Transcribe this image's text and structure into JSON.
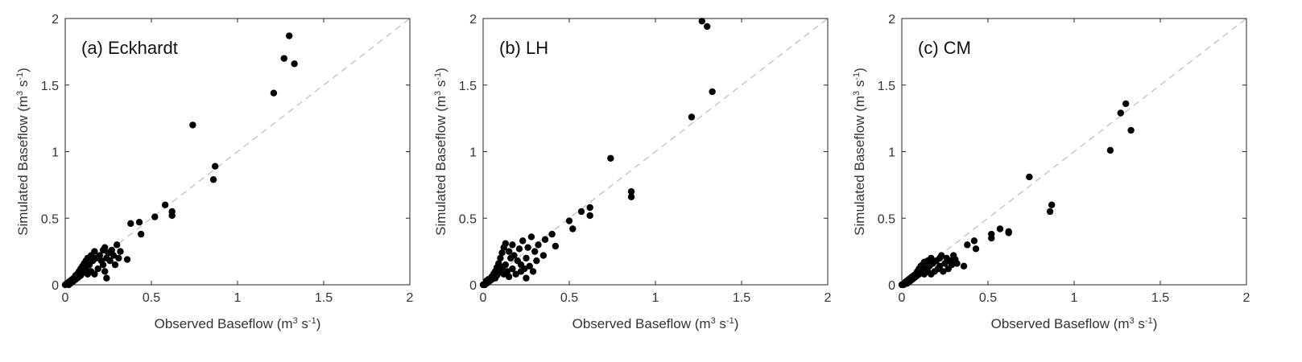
{
  "chart_data": [
    {
      "type": "scatter",
      "panel_label": "(a) Eckhardt",
      "xlabel": "Observed Baseflow (m3 s-1)",
      "ylabel": "Simulated Baseflow (m3 s-1)",
      "xlim": [
        0,
        2
      ],
      "ylim": [
        0,
        2
      ],
      "xticks": [
        "0",
        "0.5",
        "1",
        "1.5",
        "2"
      ],
      "yticks": [
        "0",
        "0.5",
        "1",
        "1.5",
        "2"
      ],
      "reference_line": "1:1 dashed",
      "grid": false,
      "series": [
        {
          "marker_color": "#000000",
          "points": [
            [
              0.0,
              0.0
            ],
            [
              0.01,
              0.01
            ],
            [
              0.02,
              0.0
            ],
            [
              0.02,
              0.02
            ],
            [
              0.03,
              0.01
            ],
            [
              0.03,
              0.03
            ],
            [
              0.04,
              0.02
            ],
            [
              0.04,
              0.04
            ],
            [
              0.05,
              0.03
            ],
            [
              0.05,
              0.05
            ],
            [
              0.06,
              0.04
            ],
            [
              0.06,
              0.07
            ],
            [
              0.07,
              0.05
            ],
            [
              0.07,
              0.08
            ],
            [
              0.08,
              0.06
            ],
            [
              0.08,
              0.1
            ],
            [
              0.09,
              0.07
            ],
            [
              0.09,
              0.12
            ],
            [
              0.1,
              0.09
            ],
            [
              0.1,
              0.14
            ],
            [
              0.11,
              0.1
            ],
            [
              0.11,
              0.16
            ],
            [
              0.12,
              0.12
            ],
            [
              0.12,
              0.18
            ],
            [
              0.13,
              0.08
            ],
            [
              0.13,
              0.2
            ],
            [
              0.14,
              0.15
            ],
            [
              0.15,
              0.22
            ],
            [
              0.15,
              0.1
            ],
            [
              0.16,
              0.18
            ],
            [
              0.17,
              0.25
            ],
            [
              0.17,
              0.08
            ],
            [
              0.18,
              0.2
            ],
            [
              0.19,
              0.12
            ],
            [
              0.2,
              0.22
            ],
            [
              0.21,
              0.18
            ],
            [
              0.22,
              0.26
            ],
            [
              0.22,
              0.15
            ],
            [
              0.23,
              0.28
            ],
            [
              0.23,
              0.1
            ],
            [
              0.24,
              0.2
            ],
            [
              0.24,
              0.05
            ],
            [
              0.25,
              0.24
            ],
            [
              0.26,
              0.18
            ],
            [
              0.27,
              0.26
            ],
            [
              0.28,
              0.22
            ],
            [
              0.29,
              0.15
            ],
            [
              0.3,
              0.3
            ],
            [
              0.31,
              0.2
            ],
            [
              0.32,
              0.25
            ],
            [
              0.36,
              0.19
            ],
            [
              0.38,
              0.46
            ],
            [
              0.43,
              0.47
            ],
            [
              0.44,
              0.38
            ],
            [
              0.52,
              0.51
            ],
            [
              0.58,
              0.6
            ],
            [
              0.62,
              0.55
            ],
            [
              0.62,
              0.52
            ],
            [
              0.74,
              1.2
            ],
            [
              0.87,
              0.89
            ],
            [
              0.86,
              0.79
            ],
            [
              1.21,
              1.44
            ],
            [
              1.27,
              1.7
            ],
            [
              1.3,
              1.87
            ],
            [
              1.33,
              1.66
            ]
          ]
        }
      ]
    },
    {
      "type": "scatter",
      "panel_label": "(b) LH",
      "xlabel": "Observed Baseflow (m3 s-1)",
      "ylabel": "Simulated Baseflow (m3 s-1)",
      "xlim": [
        0,
        2
      ],
      "ylim": [
        0,
        2
      ],
      "xticks": [
        "0",
        "0.5",
        "1",
        "1.5",
        "2"
      ],
      "yticks": [
        "0",
        "0.5",
        "1",
        "1.5",
        "2"
      ],
      "reference_line": "1:1 dashed",
      "grid": false,
      "series": [
        {
          "marker_color": "#000000",
          "points": [
            [
              0.0,
              0.0
            ],
            [
              0.01,
              0.0
            ],
            [
              0.02,
              0.01
            ],
            [
              0.02,
              0.03
            ],
            [
              0.03,
              0.02
            ],
            [
              0.03,
              0.04
            ],
            [
              0.04,
              0.03
            ],
            [
              0.05,
              0.06
            ],
            [
              0.05,
              0.04
            ],
            [
              0.06,
              0.08
            ],
            [
              0.07,
              0.05
            ],
            [
              0.07,
              0.1
            ],
            [
              0.08,
              0.07
            ],
            [
              0.08,
              0.13
            ],
            [
              0.09,
              0.09
            ],
            [
              0.09,
              0.16
            ],
            [
              0.1,
              0.11
            ],
            [
              0.1,
              0.2
            ],
            [
              0.11,
              0.13
            ],
            [
              0.11,
              0.24
            ],
            [
              0.12,
              0.08
            ],
            [
              0.12,
              0.28
            ],
            [
              0.13,
              0.15
            ],
            [
              0.13,
              0.31
            ],
            [
              0.14,
              0.1
            ],
            [
              0.15,
              0.25
            ],
            [
              0.15,
              0.06
            ],
            [
              0.16,
              0.2
            ],
            [
              0.17,
              0.3
            ],
            [
              0.17,
              0.12
            ],
            [
              0.18,
              0.22
            ],
            [
              0.19,
              0.08
            ],
            [
              0.2,
              0.18
            ],
            [
              0.21,
              0.27
            ],
            [
              0.22,
              0.1
            ],
            [
              0.22,
              0.15
            ],
            [
              0.23,
              0.33
            ],
            [
              0.24,
              0.12
            ],
            [
              0.25,
              0.2
            ],
            [
              0.25,
              0.05
            ],
            [
              0.26,
              0.28
            ],
            [
              0.27,
              0.14
            ],
            [
              0.28,
              0.36
            ],
            [
              0.29,
              0.1
            ],
            [
              0.3,
              0.25
            ],
            [
              0.31,
              0.18
            ],
            [
              0.32,
              0.3
            ],
            [
              0.35,
              0.22
            ],
            [
              0.36,
              0.34
            ],
            [
              0.4,
              0.38
            ],
            [
              0.42,
              0.29
            ],
            [
              0.5,
              0.48
            ],
            [
              0.52,
              0.42
            ],
            [
              0.57,
              0.55
            ],
            [
              0.62,
              0.58
            ],
            [
              0.62,
              0.52
            ],
            [
              0.74,
              0.95
            ],
            [
              0.86,
              0.7
            ],
            [
              0.86,
              0.66
            ],
            [
              1.21,
              1.26
            ],
            [
              1.27,
              1.98
            ],
            [
              1.3,
              1.94
            ],
            [
              1.33,
              1.45
            ]
          ]
        }
      ]
    },
    {
      "type": "scatter",
      "panel_label": "(c) CM",
      "xlabel": "Observed Baseflow (m3 s-1)",
      "ylabel": "Simulated Baseflow (m3 s-1)",
      "xlim": [
        0,
        2
      ],
      "ylim": [
        0,
        2
      ],
      "xticks": [
        "0",
        "0.5",
        "1",
        "1.5",
        "2"
      ],
      "yticks": [
        "0",
        "0.5",
        "1",
        "1.5",
        "2"
      ],
      "reference_line": "1:1 dashed",
      "grid": false,
      "series": [
        {
          "marker_color": "#000000",
          "points": [
            [
              0.0,
              0.0
            ],
            [
              0.01,
              0.0
            ],
            [
              0.02,
              0.01
            ],
            [
              0.02,
              0.02
            ],
            [
              0.03,
              0.01
            ],
            [
              0.03,
              0.03
            ],
            [
              0.04,
              0.02
            ],
            [
              0.04,
              0.04
            ],
            [
              0.05,
              0.03
            ],
            [
              0.05,
              0.05
            ],
            [
              0.06,
              0.04
            ],
            [
              0.06,
              0.06
            ],
            [
              0.07,
              0.05
            ],
            [
              0.07,
              0.07
            ],
            [
              0.08,
              0.06
            ],
            [
              0.08,
              0.08
            ],
            [
              0.09,
              0.07
            ],
            [
              0.09,
              0.1
            ],
            [
              0.1,
              0.08
            ],
            [
              0.1,
              0.12
            ],
            [
              0.11,
              0.09
            ],
            [
              0.11,
              0.14
            ],
            [
              0.12,
              0.1
            ],
            [
              0.12,
              0.15
            ],
            [
              0.13,
              0.08
            ],
            [
              0.13,
              0.17
            ],
            [
              0.14,
              0.12
            ],
            [
              0.15,
              0.18
            ],
            [
              0.15,
              0.1
            ],
            [
              0.16,
              0.14
            ],
            [
              0.17,
              0.2
            ],
            [
              0.17,
              0.08
            ],
            [
              0.18,
              0.16
            ],
            [
              0.19,
              0.1
            ],
            [
              0.2,
              0.18
            ],
            [
              0.21,
              0.12
            ],
            [
              0.22,
              0.2
            ],
            [
              0.22,
              0.14
            ],
            [
              0.23,
              0.22
            ],
            [
              0.24,
              0.1
            ],
            [
              0.25,
              0.16
            ],
            [
              0.26,
              0.2
            ],
            [
              0.27,
              0.12
            ],
            [
              0.28,
              0.18
            ],
            [
              0.29,
              0.15
            ],
            [
              0.3,
              0.22
            ],
            [
              0.31,
              0.19
            ],
            [
              0.32,
              0.16
            ],
            [
              0.36,
              0.14
            ],
            [
              0.38,
              0.3
            ],
            [
              0.42,
              0.33
            ],
            [
              0.43,
              0.27
            ],
            [
              0.52,
              0.38
            ],
            [
              0.52,
              0.35
            ],
            [
              0.57,
              0.42
            ],
            [
              0.62,
              0.4
            ],
            [
              0.62,
              0.39
            ],
            [
              0.74,
              0.81
            ],
            [
              0.87,
              0.6
            ],
            [
              0.86,
              0.55
            ],
            [
              1.21,
              1.01
            ],
            [
              1.27,
              1.29
            ],
            [
              1.3,
              1.36
            ],
            [
              1.33,
              1.16
            ]
          ]
        }
      ]
    }
  ]
}
